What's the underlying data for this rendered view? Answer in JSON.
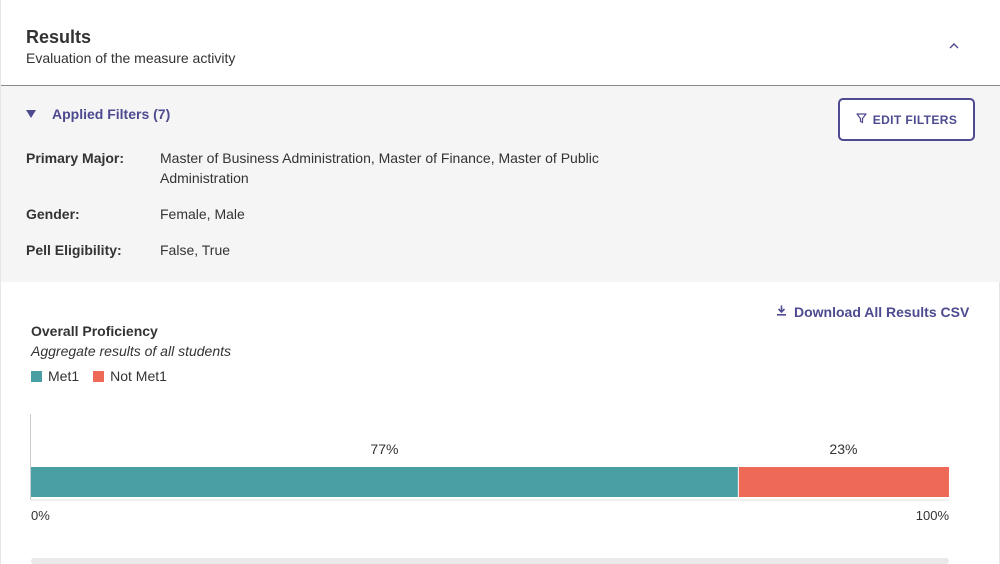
{
  "header": {
    "title": "Results",
    "subtitle": "Evaluation of the measure activity",
    "collapse_icon": "chevron-up-icon"
  },
  "filters": {
    "toggle_label": "Applied Filters (7)",
    "edit_button_label": "EDIT FILTERS",
    "rows": [
      {
        "key": "Primary Major:",
        "value": "Master of Business Administration, Master of Finance, Master of Public Administration"
      },
      {
        "key": "Gender:",
        "value": "Female, Male"
      },
      {
        "key": "Pell Eligibility:",
        "value": "False, True"
      }
    ]
  },
  "download": {
    "label": "Download All Results CSV",
    "icon": "download-icon"
  },
  "chart": {
    "title": "Overall Proficiency",
    "subtitle": "Aggregate results of all students",
    "legend": [
      {
        "name": "Met1",
        "color": "#4a9fa5"
      },
      {
        "name": "Not Met1",
        "color": "#ee6a56"
      }
    ]
  },
  "chart_data": {
    "type": "bar",
    "orientation": "horizontal-stacked",
    "categories": [
      ""
    ],
    "series": [
      {
        "name": "Met1",
        "values": [
          77
        ],
        "label": "77%",
        "color": "#4a9fa5"
      },
      {
        "name": "Not Met1",
        "values": [
          23
        ],
        "label": "23%",
        "color": "#ee6a56"
      }
    ],
    "xlim": [
      0,
      100
    ],
    "tick_labels": [
      "0%",
      "100%"
    ],
    "title": "Overall Proficiency",
    "subtitle": "Aggregate results of all students",
    "legend_position": "top-left"
  },
  "colors": {
    "accent": "#4d4a8f",
    "filter_bg": "#f5f5f5"
  }
}
